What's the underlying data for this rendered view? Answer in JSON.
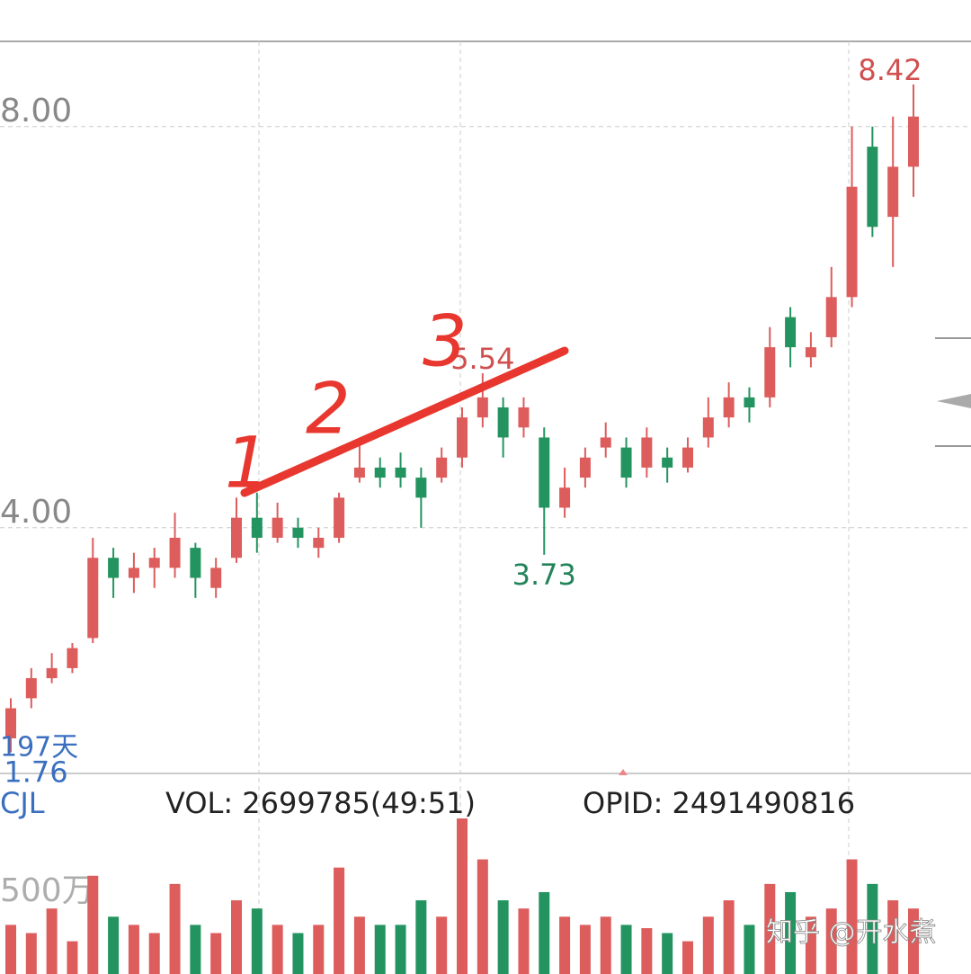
{
  "chart_data": {
    "type": "candlestick",
    "period_label": "197天",
    "open": [
      1.9,
      2.3,
      2.5,
      2.6,
      2.9,
      3.7,
      3.5,
      3.6,
      3.6,
      3.8,
      3.4,
      3.7,
      4.1,
      3.9,
      4.0,
      3.8,
      3.9,
      4.5,
      4.6,
      4.6,
      4.5,
      4.5,
      4.7,
      5.1,
      5.2,
      5.0,
      4.9,
      4.2,
      4.5,
      4.8,
      4.8,
      4.6,
      4.7,
      4.6,
      4.9,
      5.1,
      5.3,
      5.3,
      6.1,
      5.7,
      5.9,
      6.3,
      7.8,
      7.1,
      7.6
    ],
    "close": [
      2.2,
      2.5,
      2.6,
      2.8,
      3.7,
      3.5,
      3.6,
      3.7,
      3.9,
      3.5,
      3.6,
      4.1,
      3.9,
      4.1,
      3.9,
      3.9,
      4.3,
      4.6,
      4.5,
      4.5,
      4.3,
      4.7,
      5.1,
      5.3,
      4.9,
      5.2,
      4.2,
      4.4,
      4.7,
      4.9,
      4.5,
      4.9,
      4.6,
      4.8,
      5.1,
      5.3,
      5.2,
      5.8,
      5.8,
      5.8,
      6.3,
      7.4,
      7.0,
      7.6,
      8.1
    ],
    "high": [
      2.3,
      2.6,
      2.75,
      2.85,
      3.9,
      3.8,
      3.75,
      3.8,
      4.15,
      3.85,
      3.7,
      4.3,
      4.35,
      4.25,
      4.1,
      4.0,
      4.35,
      4.85,
      4.7,
      4.75,
      4.6,
      4.8,
      5.2,
      5.54,
      5.3,
      5.3,
      5.0,
      4.6,
      4.8,
      5.05,
      4.9,
      5.0,
      4.8,
      4.9,
      5.3,
      5.45,
      5.4,
      6.0,
      6.2,
      5.95,
      6.6,
      8.0,
      8.0,
      8.1,
      8.42
    ],
    "low": [
      1.76,
      2.2,
      2.45,
      2.55,
      2.85,
      3.3,
      3.35,
      3.4,
      3.5,
      3.3,
      3.3,
      3.65,
      3.75,
      3.85,
      3.8,
      3.7,
      3.85,
      4.45,
      4.4,
      4.4,
      4.0,
      4.45,
      4.6,
      5.0,
      4.7,
      4.9,
      3.73,
      4.1,
      4.4,
      4.7,
      4.4,
      4.5,
      4.45,
      4.55,
      4.8,
      5.0,
      5.05,
      5.2,
      5.6,
      5.6,
      5.8,
      6.2,
      6.9,
      6.6,
      7.3
    ],
    "up_color": "#dd5c5c",
    "down_color": "#23945f",
    "ylim": [
      1.55,
      8.85
    ],
    "yticks": [
      {
        "value": 4,
        "label": "4.00"
      },
      {
        "value": 8,
        "label": "8.00"
      }
    ],
    "annotations": [
      {
        "value": 8.42,
        "label": "8.42",
        "color": "#d05050"
      },
      {
        "value": 5.54,
        "label": "5.54",
        "color": "#d05050"
      },
      {
        "value": 3.73,
        "label": "3.73",
        "color": "#23845a"
      },
      {
        "value": 1.76,
        "label": "1.76",
        "color": "#3a6fc0"
      }
    ],
    "handwriting": [
      "1",
      "2",
      "3"
    ],
    "volume": {
      "title": "CJL",
      "info": "VOL: 2699785(49:51)",
      "opid": "OPID: 2491490816",
      "values": [
        300,
        250,
        400,
        200,
        600,
        350,
        300,
        250,
        550,
        300,
        250,
        450,
        400,
        300,
        250,
        300,
        650,
        350,
        300,
        300,
        450,
        350,
        950,
        700,
        450,
        400,
        500,
        350,
        300,
        350,
        300,
        280,
        250,
        200,
        350,
        450,
        300,
        550,
        500,
        350,
        400,
        700,
        550,
        450,
        400
      ],
      "ylim": [
        0,
        1115
      ],
      "yticks": [
        {
          "value": 500,
          "label": "500万"
        }
      ]
    },
    "watermark": "知乎 @开水煮"
  }
}
